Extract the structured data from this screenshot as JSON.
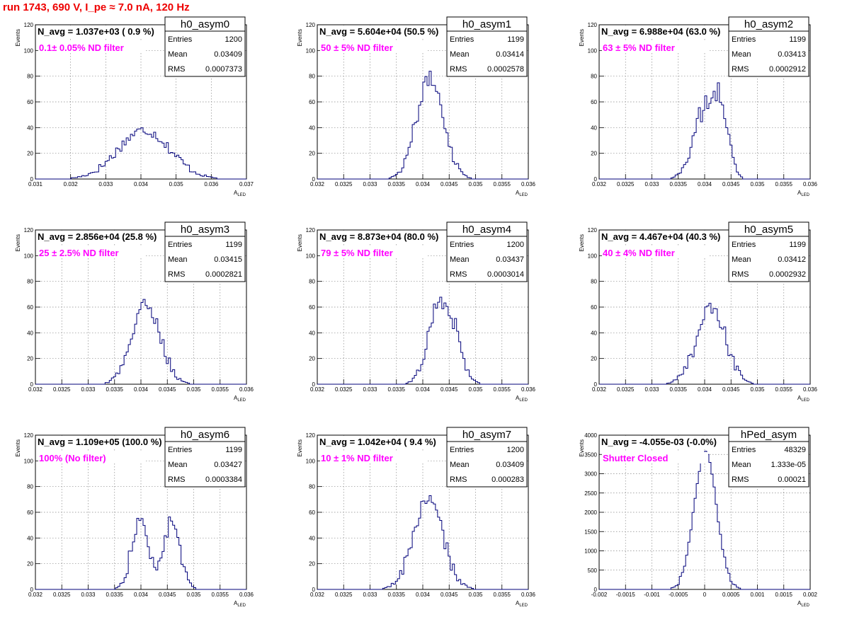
{
  "header": {
    "run_title": "run 1743,   690 V, I_pe ≈ 7.0 nA, 120 Hz"
  },
  "colors": {
    "histogram_line": "#00007a",
    "annotation": "#ff00ff",
    "run_title": "#ee0000",
    "grid": "#888888"
  },
  "chart_data": [
    {
      "type": "histogram",
      "title": "h0_asym0",
      "stat_labels": [
        "Entries",
        "Mean",
        "RMS"
      ],
      "stat_values": [
        "1200",
        "0.03409",
        "0.0007373"
      ],
      "navg_text": "N_avg = 1.037e+03 ( 0.9 %)",
      "annotation": "0.1± 0.05% ND filter",
      "xlabel": "A",
      "xlabel_sub": "LED",
      "ylabel": "Events",
      "xlim": [
        0.031,
        0.037
      ],
      "ylim": [
        0,
        120
      ],
      "xticks": [
        0.031,
        0.032,
        0.033,
        0.034,
        0.035,
        0.036,
        0.037
      ],
      "xticklabels": [
        "0.031",
        "0.032",
        "0.033",
        "0.034",
        "0.035",
        "0.036",
        "0.037"
      ],
      "yticks": [
        0,
        20,
        40,
        60,
        80,
        100,
        120
      ],
      "yticklabels": [
        "0",
        "20",
        "40",
        "60",
        "80",
        "100",
        "120"
      ],
      "profile": {
        "peaks": [
          {
            "mu": 0.03409,
            "sigma": 0.00074,
            "amp": 38
          }
        ],
        "noise": 4
      }
    },
    {
      "type": "histogram",
      "title": "h0_asym1",
      "stat_labels": [
        "Entries",
        "Mean",
        "RMS"
      ],
      "stat_values": [
        "1199",
        "0.03414",
        "0.0002578"
      ],
      "navg_text": "N_avg = 5.604e+04 (50.5 %)",
      "annotation": "50 ± 5% ND filter",
      "xlabel": "A",
      "xlabel_sub": "LED",
      "ylabel": "Events",
      "xlim": [
        0.032,
        0.036
      ],
      "ylim": [
        0,
        120
      ],
      "xticks": [
        0.032,
        0.0325,
        0.033,
        0.0335,
        0.034,
        0.0345,
        0.035,
        0.0355,
        0.036
      ],
      "xticklabels": [
        "0.032",
        "0.0325",
        "0.033",
        "0.0335",
        "0.034",
        "0.0345",
        "0.035",
        "0.0355",
        "0.036"
      ],
      "yticks": [
        0,
        20,
        40,
        60,
        80,
        100,
        120
      ],
      "yticklabels": [
        "0",
        "20",
        "40",
        "60",
        "80",
        "100",
        "120"
      ],
      "profile": {
        "peaks": [
          {
            "mu": 0.03414,
            "sigma": 0.00026,
            "amp": 78
          }
        ],
        "noise": 6
      }
    },
    {
      "type": "histogram",
      "title": "h0_asym2",
      "stat_labels": [
        "Entries",
        "Mean",
        "RMS"
      ],
      "stat_values": [
        "1199",
        "0.03413",
        "0.0002912"
      ],
      "navg_text": "N_avg = 6.988e+04 (63.0 %)",
      "annotation": "63 ± 5% ND filter",
      "xlabel": "A",
      "xlabel_sub": "LED",
      "ylabel": "Events",
      "xlim": [
        0.032,
        0.036
      ],
      "ylim": [
        0,
        120
      ],
      "xticks": [
        0.032,
        0.0325,
        0.033,
        0.0335,
        0.034,
        0.0345,
        0.035,
        0.0355,
        0.036
      ],
      "xticklabels": [
        "0.032",
        "0.0325",
        "0.033",
        "0.0335",
        "0.034",
        "0.0345",
        "0.035",
        "0.0355",
        "0.036"
      ],
      "yticks": [
        0,
        20,
        40,
        60,
        80,
        100,
        120
      ],
      "yticklabels": [
        "0",
        "20",
        "40",
        "60",
        "80",
        "100",
        "120"
      ],
      "profile": {
        "peaks": [
          {
            "mu": 0.034,
            "sigma": 0.00022,
            "amp": 52
          },
          {
            "mu": 0.03432,
            "sigma": 0.00014,
            "amp": 45
          }
        ],
        "noise": 9
      }
    },
    {
      "type": "histogram",
      "title": "h0_asym3",
      "stat_labels": [
        "Entries",
        "Mean",
        "RMS"
      ],
      "stat_values": [
        "1199",
        "0.03415",
        "0.0002821"
      ],
      "navg_text": "N_avg = 2.856e+04 (25.8 %)",
      "annotation": "25 ± 2.5% ND filter",
      "xlabel": "A",
      "xlabel_sub": "LED",
      "ylabel": "Events",
      "xlim": [
        0.032,
        0.036
      ],
      "ylim": [
        0,
        120
      ],
      "xticks": [
        0.032,
        0.0325,
        0.033,
        0.0335,
        0.034,
        0.0345,
        0.035,
        0.0355,
        0.036
      ],
      "xticklabels": [
        "0.032",
        "0.0325",
        "0.033",
        "0.0335",
        "0.034",
        "0.0345",
        "0.035",
        "0.0355",
        "0.036"
      ],
      "yticks": [
        0,
        20,
        40,
        60,
        80,
        100,
        120
      ],
      "yticklabels": [
        "0",
        "20",
        "40",
        "60",
        "80",
        "100",
        "120"
      ],
      "profile": {
        "peaks": [
          {
            "mu": 0.0341,
            "sigma": 0.00027,
            "amp": 62
          }
        ],
        "noise": 5
      }
    },
    {
      "type": "histogram",
      "title": "h0_asym4",
      "stat_labels": [
        "Entries",
        "Mean",
        "RMS"
      ],
      "stat_values": [
        "1200",
        "0.03437",
        "0.0003014"
      ],
      "navg_text": "N_avg = 8.873e+04 (80.0 %)",
      "annotation": "79 ± 5% ND filter",
      "xlabel": "A",
      "xlabel_sub": "LED",
      "ylabel": "Events",
      "xlim": [
        0.032,
        0.036
      ],
      "ylim": [
        0,
        120
      ],
      "xticks": [
        0.032,
        0.0325,
        0.033,
        0.0335,
        0.034,
        0.0345,
        0.035,
        0.0355,
        0.036
      ],
      "xticklabels": [
        "0.032",
        "0.0325",
        "0.033",
        "0.0335",
        "0.034",
        "0.0345",
        "0.035",
        "0.0355",
        "0.036"
      ],
      "yticks": [
        0,
        20,
        40,
        60,
        80,
        100,
        120
      ],
      "yticklabels": [
        "0",
        "20",
        "40",
        "60",
        "80",
        "100",
        "120"
      ],
      "profile": {
        "peaks": [
          {
            "mu": 0.03428,
            "sigma": 0.0002,
            "amp": 55
          },
          {
            "mu": 0.03458,
            "sigma": 0.00018,
            "amp": 32
          }
        ],
        "noise": 8
      }
    },
    {
      "type": "histogram",
      "title": "h0_asym5",
      "stat_labels": [
        "Entries",
        "Mean",
        "RMS"
      ],
      "stat_values": [
        "1199",
        "0.03412",
        "0.0002932"
      ],
      "navg_text": "N_avg = 4.467e+04 (40.3 %)",
      "annotation": "40 ± 4% ND filter",
      "xlabel": "A",
      "xlabel_sub": "LED",
      "ylabel": "Events",
      "xlim": [
        0.032,
        0.036
      ],
      "ylim": [
        0,
        120
      ],
      "xticks": [
        0.032,
        0.0325,
        0.033,
        0.0335,
        0.034,
        0.0345,
        0.035,
        0.0355,
        0.036
      ],
      "xticklabels": [
        "0.032",
        "0.0325",
        "0.033",
        "0.0335",
        "0.034",
        "0.0345",
        "0.035",
        "0.0355",
        "0.036"
      ],
      "yticks": [
        0,
        20,
        40,
        60,
        80,
        100,
        120
      ],
      "yticklabels": [
        "0",
        "20",
        "40",
        "60",
        "80",
        "100",
        "120"
      ],
      "profile": {
        "peaks": [
          {
            "mu": 0.03412,
            "sigma": 0.00028,
            "amp": 58
          }
        ],
        "noise": 7
      }
    },
    {
      "type": "histogram",
      "title": "h0_asym6",
      "stat_labels": [
        "Entries",
        "Mean",
        "RMS"
      ],
      "stat_values": [
        "1199",
        "0.03427",
        "0.0003384"
      ],
      "navg_text": "N_avg = 1.109e+05 (100.0 %)",
      "annotation": "100% (No filter)",
      "xlabel": "A",
      "xlabel_sub": "LED",
      "ylabel": "Events",
      "xlim": [
        0.032,
        0.036
      ],
      "ylim": [
        0,
        120
      ],
      "xticks": [
        0.032,
        0.0325,
        0.033,
        0.0335,
        0.034,
        0.0345,
        0.035,
        0.0355,
        0.036
      ],
      "xticklabels": [
        "0.032",
        "0.0325",
        "0.033",
        "0.0335",
        "0.034",
        "0.0345",
        "0.035",
        "0.0355",
        "0.036"
      ],
      "yticks": [
        0,
        20,
        40,
        60,
        80,
        100,
        120
      ],
      "yticklabels": [
        "0",
        "20",
        "40",
        "60",
        "80",
        "100",
        "120"
      ],
      "profile": {
        "peaks": [
          {
            "mu": 0.03398,
            "sigma": 0.00016,
            "amp": 53
          },
          {
            "mu": 0.03458,
            "sigma": 0.00016,
            "amp": 52
          }
        ],
        "noise": 6
      }
    },
    {
      "type": "histogram",
      "title": "h0_asym7",
      "stat_labels": [
        "Entries",
        "Mean",
        "RMS"
      ],
      "stat_values": [
        "1200",
        "0.03409",
        "0.000283"
      ],
      "navg_text": "N_avg = 1.042e+04 ( 9.4 %)",
      "annotation": "10 ± 1% ND filter",
      "xlabel": "A",
      "xlabel_sub": "LED",
      "ylabel": "Events",
      "xlim": [
        0.032,
        0.036
      ],
      "ylim": [
        0,
        120
      ],
      "xticks": [
        0.032,
        0.0325,
        0.033,
        0.0335,
        0.034,
        0.0345,
        0.035,
        0.0355,
        0.036
      ],
      "xticklabels": [
        "0.032",
        "0.0325",
        "0.033",
        "0.0335",
        "0.034",
        "0.0345",
        "0.035",
        "0.0355",
        "0.036"
      ],
      "yticks": [
        0,
        20,
        40,
        60,
        80,
        100,
        120
      ],
      "yticklabels": [
        "0",
        "20",
        "40",
        "60",
        "80",
        "100",
        "120"
      ],
      "profile": {
        "peaks": [
          {
            "mu": 0.0341,
            "sigma": 0.00028,
            "amp": 70
          }
        ],
        "noise": 6
      }
    },
    {
      "type": "histogram",
      "title": "hPed_asym",
      "stat_labels": [
        "Entries",
        "Mean",
        "RMS"
      ],
      "stat_values": [
        "48329",
        "1.333e-05",
        "0.00021"
      ],
      "navg_text": "N_avg = -4.055e-03 (-0.0%)",
      "annotation": "Shutter Closed",
      "xlabel": "A",
      "xlabel_sub": "LED",
      "ylabel": "Events",
      "xlim": [
        -0.002,
        0.002
      ],
      "ylim": [
        0,
        4000
      ],
      "xticks": [
        -0.002,
        -0.0015,
        -0.001,
        -0.0005,
        0,
        0.0005,
        0.001,
        0.0015,
        0.002
      ],
      "xticklabels": [
        "-0.002",
        "-0.0015",
        "-0.001",
        "-0.0005",
        "0",
        "0.0005",
        "0.001",
        "0.0015",
        "0.002"
      ],
      "yticks": [
        0,
        500,
        1000,
        1500,
        2000,
        2500,
        3000,
        3500,
        4000
      ],
      "yticklabels": [
        "0",
        "500",
        "1000",
        "1500",
        "2000",
        "2500",
        "3000",
        "3500",
        "4000"
      ],
      "profile": {
        "peaks": [
          {
            "mu": 1.33e-05,
            "sigma": 0.00021,
            "amp": 3600
          }
        ],
        "noise": 60
      }
    }
  ]
}
